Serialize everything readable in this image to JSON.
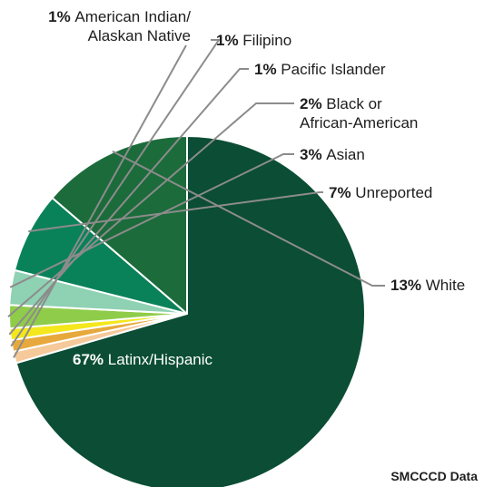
{
  "chart_data": {
    "type": "pie",
    "slices": [
      {
        "label_lines": [
          "American Indian/",
          "Alaskan Native"
        ],
        "percent_text": "1%",
        "value": 1,
        "color": "#f5c99a"
      },
      {
        "label_lines": [
          "Filipino"
        ],
        "percent_text": "1%",
        "value": 1,
        "color": "#e7a93c"
      },
      {
        "label_lines": [
          "Pacific Islander"
        ],
        "percent_text": "1%",
        "value": 1,
        "color": "#f4e71c"
      },
      {
        "label_lines": [
          "Black or",
          "African-American"
        ],
        "percent_text": "2%",
        "value": 2,
        "color": "#8fcc4a"
      },
      {
        "label_lines": [
          "Asian"
        ],
        "percent_text": "3%",
        "value": 3,
        "color": "#8fd1b3"
      },
      {
        "label_lines": [
          "Unreported"
        ],
        "percent_text": "7%",
        "value": 7,
        "color": "#0a8259"
      },
      {
        "label_lines": [
          "White"
        ],
        "percent_text": "13%",
        "value": 13,
        "color": "#1c6b3b"
      },
      {
        "label_lines": [
          "Latinx/Hispanic"
        ],
        "percent_text": "67%",
        "value": 67,
        "color": "#0b4d35"
      }
    ]
  },
  "source_note": "SMCCCD Data"
}
